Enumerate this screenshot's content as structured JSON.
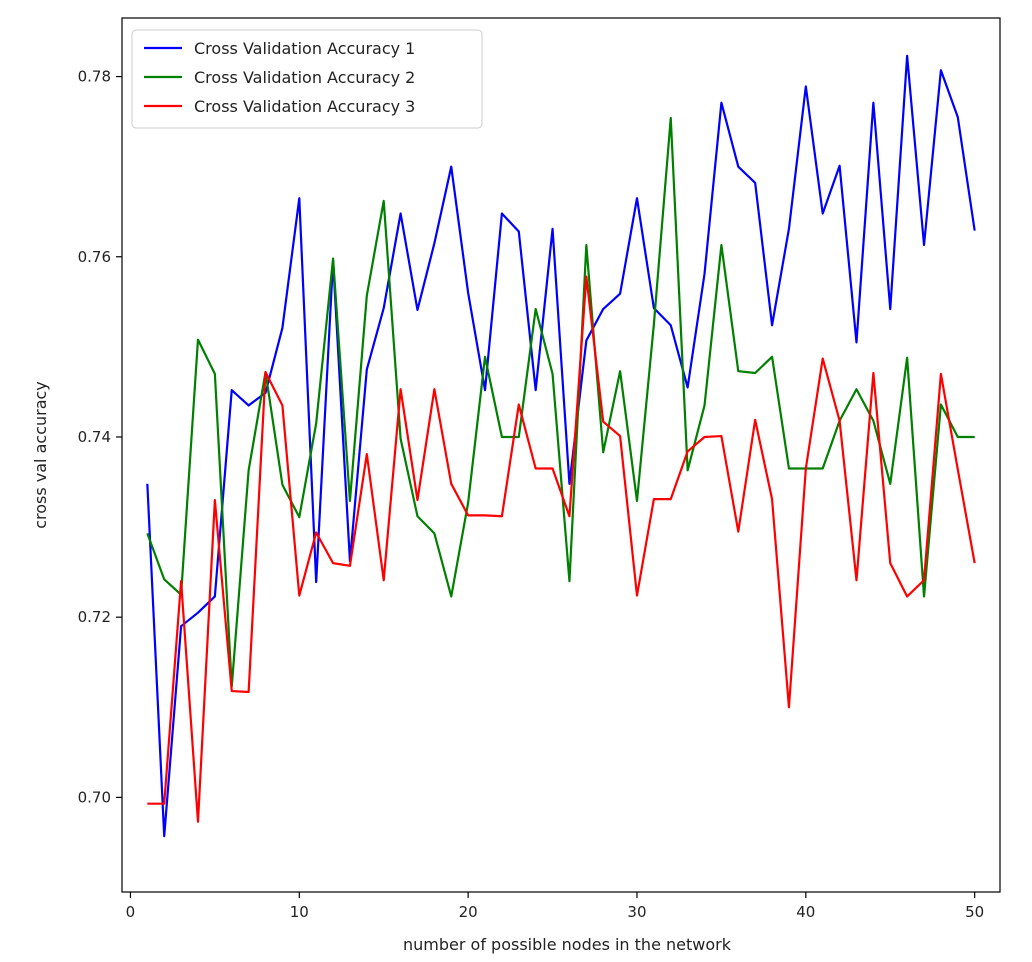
{
  "chart_data": {
    "type": "line",
    "title": "",
    "xlabel": "number of possible nodes in the network",
    "ylabel": "cross val accuracy",
    "xlim": [
      -0.5,
      51.5
    ],
    "ylim": [
      0.6895,
      0.7865
    ],
    "xticks": [
      0,
      10,
      20,
      30,
      40,
      50
    ],
    "xtick_labels": [
      "0",
      "10",
      "20",
      "30",
      "40",
      "50"
    ],
    "yticks": [
      0.7,
      0.72,
      0.74,
      0.76,
      0.78
    ],
    "ytick_labels": [
      "0.70",
      "0.72",
      "0.74",
      "0.76",
      "0.78"
    ],
    "grid": false,
    "legend_position": "top-left",
    "x": [
      1,
      2,
      3,
      4,
      5,
      6,
      7,
      8,
      9,
      10,
      11,
      12,
      13,
      14,
      15,
      16,
      17,
      18,
      19,
      20,
      21,
      22,
      23,
      24,
      25,
      26,
      27,
      28,
      29,
      30,
      31,
      32,
      33,
      34,
      35,
      36,
      37,
      38,
      39,
      40,
      41,
      42,
      43,
      44,
      45,
      46,
      47,
      48,
      49,
      50
    ],
    "series": [
      {
        "name": "Cross Validation Accuracy 1",
        "color": "#0000ff",
        "values": [
          0.7348,
          0.6957,
          0.719,
          0.7205,
          0.7223,
          0.7452,
          0.7435,
          0.7449,
          0.7521,
          0.7665,
          0.7239,
          0.7596,
          0.7262,
          0.7475,
          0.7543,
          0.7648,
          0.7541,
          0.7615,
          0.77,
          0.756,
          0.7452,
          0.7648,
          0.7628,
          0.7452,
          0.7631,
          0.7348,
          0.7507,
          0.7542,
          0.7559,
          0.7665,
          0.7543,
          0.7524,
          0.7455,
          0.7581,
          0.7771,
          0.77,
          0.7682,
          0.7524,
          0.7631,
          0.7789,
          0.7648,
          0.7701,
          0.7505,
          0.7771,
          0.7542,
          0.7823,
          0.7613,
          0.7807,
          0.7755,
          0.7629
        ]
      },
      {
        "name": "Cross Validation Accuracy 2",
        "color": "#008000",
        "values": [
          0.7293,
          0.7242,
          0.7225,
          0.7508,
          0.747,
          0.7123,
          0.7363,
          0.7472,
          0.7347,
          0.7311,
          0.7415,
          0.7598,
          0.7329,
          0.7557,
          0.7662,
          0.7398,
          0.7312,
          0.7293,
          0.7223,
          0.7327,
          0.7489,
          0.74,
          0.74,
          0.7542,
          0.747,
          0.724,
          0.7613,
          0.7383,
          0.7473,
          0.7329,
          0.7525,
          0.7754,
          0.7363,
          0.7435,
          0.7613,
          0.7473,
          0.7471,
          0.7489,
          0.7365,
          0.7365,
          0.7365,
          0.7418,
          0.7453,
          0.7418,
          0.7348,
          0.7488,
          0.7223,
          0.7436,
          0.74,
          0.74
        ]
      },
      {
        "name": "Cross Validation Accuracy 3",
        "color": "#ff0000",
        "values": [
          0.6993,
          0.6993,
          0.724,
          0.6973,
          0.733,
          0.7118,
          0.7117,
          0.7472,
          0.7435,
          0.7224,
          0.7294,
          0.726,
          0.7257,
          0.7381,
          0.7241,
          0.7453,
          0.733,
          0.7453,
          0.7348,
          0.7313,
          0.7313,
          0.7312,
          0.7436,
          0.7365,
          0.7365,
          0.7312,
          0.7578,
          0.7417,
          0.7401,
          0.7224,
          0.7331,
          0.7331,
          0.7384,
          0.74,
          0.7401,
          0.7295,
          0.7419,
          0.7331,
          0.71,
          0.7365,
          0.7487,
          0.7418,
          0.7241,
          0.7471,
          0.726,
          0.7223,
          0.7241,
          0.747,
          0.7364,
          0.726
        ]
      }
    ]
  }
}
